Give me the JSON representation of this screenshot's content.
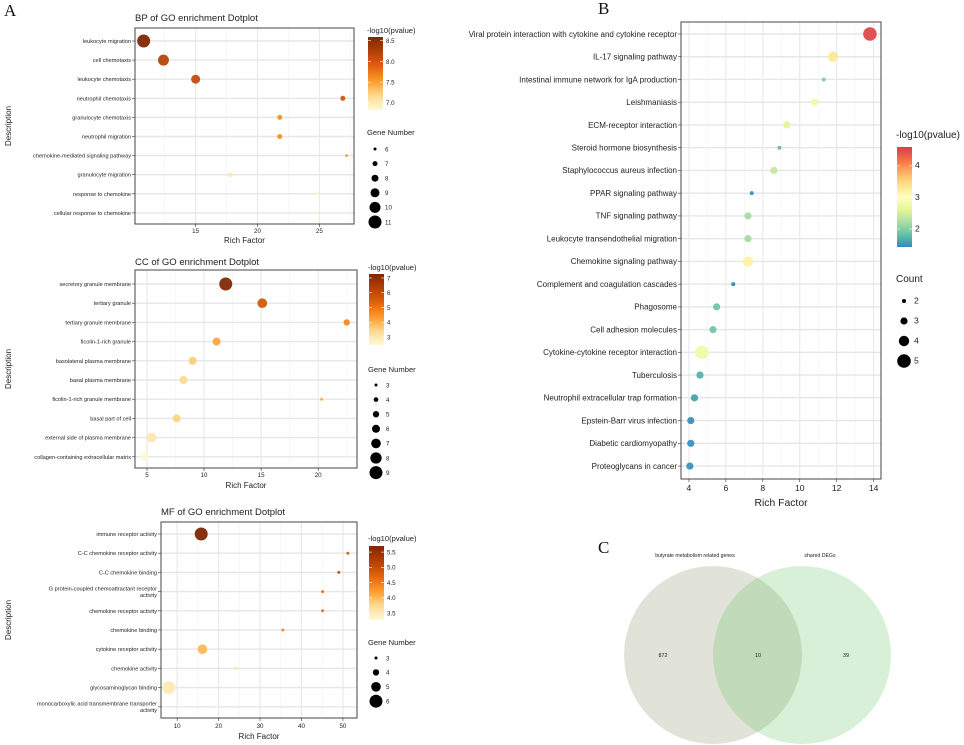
{
  "panels": {
    "a": "A",
    "b": "B",
    "c": "C"
  },
  "chart_data": [
    {
      "id": "bp",
      "type": "scatter",
      "title": "BP of GO enrichment Dotplot",
      "xlabel": "Rich Factor",
      "ylabel": "Description",
      "xlim": [
        10.1,
        27.8
      ],
      "xticks": [
        15,
        20,
        25
      ],
      "grid": true,
      "color_legend_title": "-log10(pvalue)",
      "color_scale": "yellow-orange-brown",
      "color_range": [
        6.83,
        8.59
      ],
      "color_ticks": [
        7.0,
        7.5,
        8.0,
        8.5
      ],
      "color_tick_labels": [
        "7.0",
        "7.5",
        "8.0",
        "8.5"
      ],
      "size_legend_title": "Gene Number",
      "size_levels": [
        6,
        7,
        8,
        9,
        10,
        11
      ],
      "categories": [
        "leukocyte migration",
        "cell chemotaxis",
        "leukocyte chemotaxis",
        "neutrophil chemotaxis",
        "granulocyte chemotaxis",
        "neutrophil migration",
        "chemokine-mediated signaling pathway",
        "granulocyte migration",
        "response to chemokine",
        "cellular response to chemokine"
      ],
      "x": [
        10.8,
        12.4,
        15.0,
        26.9,
        21.8,
        21.8,
        27.2,
        17.8,
        24.8,
        24.8
      ],
      "size": [
        11,
        10,
        9,
        7,
        7,
        7,
        6,
        7,
        6,
        6
      ],
      "color": [
        8.6,
        8.2,
        8.1,
        8.0,
        7.6,
        7.6,
        7.5,
        7.0,
        6.9,
        6.9
      ]
    },
    {
      "id": "cc",
      "type": "scatter",
      "title": "CC of GO enrichment Dotplot",
      "xlabel": "Rich Factor",
      "ylabel": "Description",
      "xlim": [
        3.95,
        23.4
      ],
      "xticks": [
        5,
        10,
        15,
        20
      ],
      "grid": true,
      "color_legend_title": "-log10(pvalue)",
      "color_scale": "yellow-orange-brown",
      "color_range": [
        2.46,
        7.27
      ],
      "color_ticks": [
        3,
        4,
        5,
        6,
        7
      ],
      "color_tick_labels": [
        "3",
        "4",
        "5",
        "6",
        "7"
      ],
      "size_legend_title": "Gene Number",
      "size_levels": [
        3,
        4,
        5,
        6,
        7,
        8,
        9
      ],
      "categories": [
        "secretory granule membrane",
        "tertiary granule",
        "tertiary granule membrane",
        "ficolin-1-rich granule",
        "basolateral plasma membrane",
        "basal plasma membrane",
        "ficolin-1-rich granule membrane",
        "basal part of cell",
        "external side of plasma membrane",
        "collagen-containing extracellular matrix"
      ],
      "x": [
        11.9,
        15.1,
        22.5,
        11.1,
        9.0,
        8.2,
        20.3,
        7.6,
        5.4,
        4.8
      ],
      "size": [
        9,
        7,
        5,
        6,
        6,
        6,
        3,
        6,
        7,
        6
      ],
      "color": [
        7.2,
        5.6,
        4.7,
        4.2,
        3.6,
        3.4,
        4.1,
        3.5,
        3.0,
        2.5
      ]
    },
    {
      "id": "mf",
      "type": "scatter",
      "title": "MF of GO enrichment Dotplot",
      "xlabel": "Rich Factor",
      "ylabel": "Description",
      "xlim": [
        6.1,
        53.4
      ],
      "xticks": [
        10,
        20,
        30,
        40,
        50
      ],
      "grid": true,
      "color_legend_title": "-log10(pvalue)",
      "color_scale": "yellow-orange-brown",
      "color_range": [
        3.27,
        5.7
      ],
      "color_ticks": [
        3.5,
        4.0,
        4.5,
        5.0,
        5.5
      ],
      "color_tick_labels": [
        "3.5",
        "4.0",
        "4.5",
        "5.0",
        "5.5"
      ],
      "size_legend_title": "Gene Number",
      "size_levels": [
        3,
        4,
        5,
        6
      ],
      "categories": [
        "immune receptor activity",
        "C-C chemokine receptor activity",
        "C-C chemokine binding",
        "G protein-coupled chemoattractant receptor\nactivity",
        "chemokine receptor activity",
        "chemokine binding",
        "cytokine receptor activity",
        "chemokine activity",
        "glycosaminoglycan binding",
        "monocarboxylic acid transmembrane transporter\nactivity"
      ],
      "x": [
        15.8,
        51.2,
        49.0,
        45.1,
        45.1,
        35.5,
        16.1,
        24.1,
        8.0,
        19.6
      ],
      "size": [
        6,
        3,
        3,
        3,
        3,
        3,
        5,
        3,
        6,
        3
      ],
      "color": [
        5.7,
        4.8,
        5.0,
        4.6,
        4.6,
        4.4,
        4.0,
        3.6,
        3.5,
        3.3
      ]
    },
    {
      "id": "kegg",
      "type": "scatter",
      "title": "",
      "xlabel": "Rich Factor",
      "ylabel": "",
      "xlim": [
        3.57,
        14.4
      ],
      "xticks": [
        4,
        6,
        8,
        10,
        12,
        14
      ],
      "grid": true,
      "color_legend_title": "-log10(pvalue)",
      "color_scale": "spectral",
      "color_range": [
        1.43,
        4.6
      ],
      "color_ticks": [
        2,
        3,
        4
      ],
      "color_tick_labels": [
        "2",
        "3",
        "4"
      ],
      "size_legend_title": "Count",
      "size_levels": [
        2,
        3,
        4,
        5
      ],
      "categories": [
        "Viral protein interaction with cytokine and cytokine receptor",
        "IL-17 signaling pathway",
        "Intestinal immune network for IgA production",
        "Leishmaniasis",
        "ECM-receptor interaction",
        "Steroid hormone biosynthesis",
        "Staphylococcus aureus infection",
        "PPAR signaling pathway",
        "TNF signaling pathway",
        "Leukocyte transendothelial migration",
        "Chemokine signaling pathway",
        "Complement and coagulation cascades",
        "Phagosome",
        "Cell adhesion molecules",
        "Cytokine-cytokine receptor interaction",
        "Tuberculosis",
        "Neutrophil extracellular trap formation",
        "Epstein-Barr virus infection",
        "Diabetic cardiomyopathy",
        "Proteoglycans in cancer"
      ],
      "x": [
        13.8,
        11.8,
        11.3,
        10.8,
        9.3,
        8.9,
        8.6,
        7.4,
        7.2,
        7.2,
        7.2,
        6.4,
        5.5,
        5.3,
        4.7,
        4.6,
        4.3,
        4.1,
        4.1,
        4.05
      ],
      "size": [
        5,
        4,
        2,
        3,
        3,
        2,
        3,
        2,
        3,
        3,
        4,
        2,
        3,
        3,
        5,
        3,
        3,
        3,
        3,
        3
      ],
      "color": [
        4.5,
        3.3,
        2.0,
        2.8,
        2.6,
        1.8,
        2.4,
        1.5,
        2.2,
        2.2,
        3.2,
        1.4,
        1.9,
        1.9,
        2.8,
        1.7,
        1.6,
        1.5,
        1.5,
        1.5
      ]
    }
  ],
  "venn": {
    "sets": [
      {
        "label": "butyrate metabolism related genes",
        "only": "872",
        "color": "#E2E3D8"
      },
      {
        "label": "shared DEGs",
        "only": "39",
        "color": "#D9F0D8"
      }
    ],
    "intersection": "10",
    "intersection_color": "#C1DABA"
  }
}
